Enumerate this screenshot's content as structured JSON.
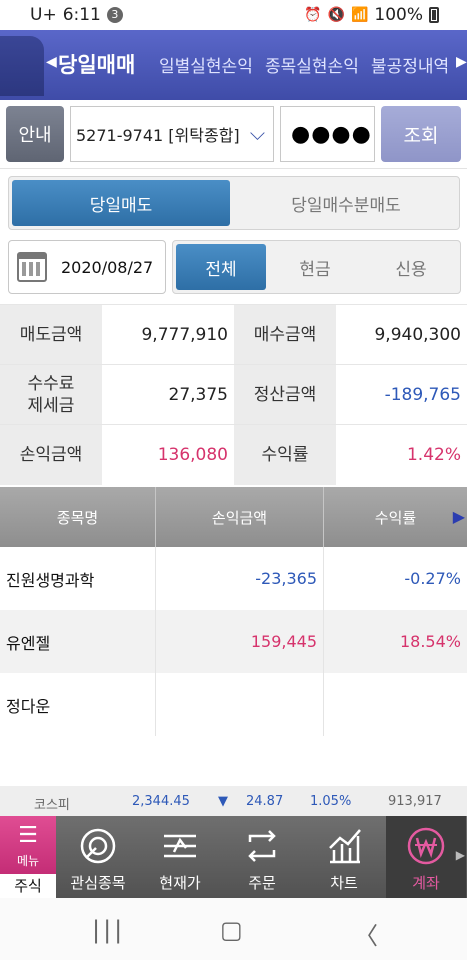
{
  "status": {
    "carrier": "U+",
    "time": "6:11",
    "notif_count": "3",
    "battery": "100%"
  },
  "tabs": {
    "items": [
      "당일매매",
      "일별실현손익",
      "종목실현손익",
      "불공정내역"
    ]
  },
  "account": {
    "guide_label": "안내",
    "account_value": "5271-9741 [위탁종합]",
    "password_mask": "●●●●",
    "query_label": "조회"
  },
  "mode": {
    "options": [
      "당일매도",
      "당일매수분매도"
    ]
  },
  "filter": {
    "date": "2020/08/27",
    "options": [
      "전체",
      "현금",
      "신용"
    ]
  },
  "summary": {
    "sell_amount_label": "매도금액",
    "sell_amount": "9,777,910",
    "buy_amount_label": "매수금액",
    "buy_amount": "9,940,300",
    "fee_label_1": "수수료",
    "fee_label_2": "제세금",
    "fee_amount": "27,375",
    "settle_label": "정산금액",
    "settle_amount": "-189,765",
    "pl_label": "손익금액",
    "pl_amount": "136,080",
    "rate_label": "수익률",
    "rate": "1.42%"
  },
  "table": {
    "headers": [
      "종목명",
      "손익금액",
      "수익률"
    ],
    "rows": [
      {
        "name": "진원생명과학",
        "pl": "-23,365",
        "rate": "-0.27%"
      },
      {
        "name": "유엔젤",
        "pl": "159,445",
        "rate": "18.54%"
      },
      {
        "name": "정다운",
        "pl": "",
        "rate": ""
      }
    ]
  },
  "ticker": {
    "index": "코스피",
    "value": "2,344.45",
    "direction": "▼",
    "change": "24.87",
    "pct": "1.05%",
    "volume": "913,917"
  },
  "bottom_nav": {
    "menu_label": "메뉴",
    "stock_label": "주식",
    "items": [
      "관심종목",
      "현재가",
      "주문",
      "차트",
      "계좌"
    ]
  },
  "colors": {
    "accent": "#2e6fa6",
    "header": "#4b57b8",
    "positive": "#d6336c",
    "negative": "#2e59b8",
    "menu": "#d13b84"
  }
}
